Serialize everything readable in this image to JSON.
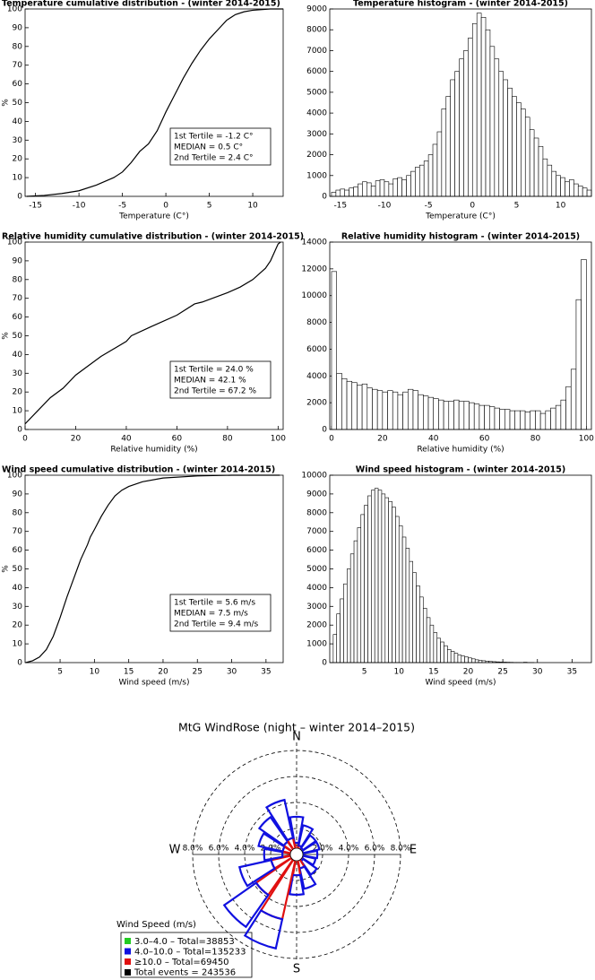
{
  "chart_data": [
    {
      "type": "line",
      "title": "Temperature cumulative distribution - (winter 2014-2015)",
      "xlabel": "Temperature (C°)",
      "ylabel": "%",
      "color": "#000000",
      "x": [
        -16,
        -14,
        -12,
        -10,
        -8,
        -6,
        -5,
        -4,
        -3,
        -2,
        -1,
        0,
        1,
        2,
        3,
        4,
        5,
        6,
        7,
        8,
        9,
        10,
        12,
        13.5
      ],
      "values": [
        0,
        0.5,
        1.5,
        3,
        6,
        10,
        13,
        18,
        24,
        28,
        35,
        45,
        54,
        63,
        71,
        78,
        84,
        89,
        94,
        97,
        98.5,
        99.3,
        100,
        100
      ],
      "xlim": [
        -16.2,
        13.5
      ],
      "ylim": [
        0,
        100
      ],
      "xticks": [
        -15,
        -10,
        -5,
        0,
        5,
        10
      ],
      "yticks": [
        0,
        10,
        20,
        30,
        40,
        50,
        60,
        70,
        80,
        90,
        100
      ],
      "annotations": [
        "1st Tertile = -1.2 C°",
        "MEDIAN = 0.5 C°",
        "2nd Tertile = 2.4 C°"
      ]
    },
    {
      "type": "histogram",
      "title": "Temperature histogram - (winter 2014-2015)",
      "xlabel": "Temperature (C°)",
      "color": "#ffffff",
      "edgecolor": "#000000",
      "bins": [
        -16,
        -15.5,
        -15,
        -14.5,
        -14,
        -13.5,
        -13,
        -12.5,
        -12,
        -11.5,
        -11,
        -10.5,
        -10,
        -9.5,
        -9,
        -8.5,
        -8,
        -7.5,
        -7,
        -6.5,
        -6,
        -5.5,
        -5,
        -4.5,
        -4,
        -3.5,
        -3,
        -2.5,
        -2,
        -1.5,
        -1,
        -0.5,
        0,
        0.5,
        1,
        1.5,
        2,
        2.5,
        3,
        3.5,
        4,
        4.5,
        5,
        5.5,
        6,
        6.5,
        7,
        7.5,
        8,
        8.5,
        9,
        9.5,
        10,
        10.5,
        11,
        11.5,
        12,
        12.5,
        13,
        13.5
      ],
      "values": [
        200,
        300,
        350,
        300,
        400,
        450,
        600,
        700,
        650,
        500,
        750,
        800,
        700,
        600,
        850,
        900,
        800,
        1000,
        1200,
        1400,
        1500,
        1700,
        2000,
        2500,
        3100,
        4200,
        4800,
        5600,
        6000,
        6600,
        7000,
        7600,
        8300,
        8800,
        8600,
        8000,
        7200,
        6600,
        6000,
        5600,
        5200,
        4800,
        4500,
        4200,
        3800,
        3200,
        2800,
        2400,
        1800,
        1500,
        1200,
        1000,
        900,
        700,
        800,
        600,
        500,
        400,
        300
      ],
      "xlim": [
        -16.2,
        13.5
      ],
      "ylim": [
        0,
        9000
      ],
      "xticks": [
        -15,
        -10,
        -5,
        0,
        5,
        10
      ],
      "yticks": [
        0,
        1000,
        2000,
        3000,
        4000,
        5000,
        6000,
        7000,
        8000,
        9000
      ]
    },
    {
      "type": "line",
      "title": "Relative humidity cumulative distribution - (winter 2014-2015)",
      "xlabel": "Relative humidity (%)",
      "ylabel": "%",
      "color": "#000000",
      "x": [
        0,
        5,
        10,
        15,
        20,
        24,
        30,
        40,
        42,
        50,
        60,
        67,
        70,
        80,
        85,
        90,
        95,
        97,
        99,
        100,
        101
      ],
      "values": [
        3,
        10,
        17,
        22,
        29,
        33,
        39,
        47,
        50,
        55,
        61,
        67,
        68,
        73,
        76,
        80,
        86,
        90,
        96,
        99,
        100
      ],
      "xlim": [
        0,
        102
      ],
      "ylim": [
        0,
        100
      ],
      "xticks": [
        0,
        20,
        40,
        60,
        80,
        100
      ],
      "yticks": [
        0,
        10,
        20,
        30,
        40,
        50,
        60,
        70,
        80,
        90,
        100
      ],
      "annotations": [
        "1st Tertile = 24.0 %",
        "MEDIAN = 42.1 %",
        "2nd Tertile = 67.2 %"
      ]
    },
    {
      "type": "histogram",
      "title": "Relative humidity histogram - (winter 2014-2015)",
      "xlabel": "Relative humidity (%)",
      "color": "#ffffff",
      "edgecolor": "#000000",
      "bins": [
        0,
        2,
        4,
        6,
        8,
        10,
        12,
        14,
        16,
        18,
        20,
        22,
        24,
        26,
        28,
        30,
        32,
        34,
        36,
        38,
        40,
        42,
        44,
        46,
        48,
        50,
        52,
        54,
        56,
        58,
        60,
        62,
        64,
        66,
        68,
        70,
        72,
        74,
        76,
        78,
        80,
        82,
        84,
        86,
        88,
        90,
        92,
        94,
        96,
        98,
        100
      ],
      "values": [
        11800,
        4200,
        3800,
        3600,
        3500,
        3300,
        3400,
        3100,
        3000,
        2900,
        2800,
        2900,
        2800,
        2600,
        2800,
        3000,
        2900,
        2600,
        2500,
        2400,
        2300,
        2200,
        2100,
        2100,
        2200,
        2100,
        2100,
        2000,
        1900,
        1800,
        1800,
        1700,
        1600,
        1500,
        1500,
        1400,
        1400,
        1400,
        1300,
        1400,
        1400,
        1200,
        1400,
        1600,
        1800,
        2200,
        3200,
        4500,
        9700,
        12700
      ],
      "xlim": [
        -0.7,
        102
      ],
      "ylim": [
        0,
        14000
      ],
      "xticks": [
        0,
        20,
        40,
        60,
        80,
        100
      ],
      "yticks": [
        0,
        2000,
        4000,
        6000,
        8000,
        10000,
        12000,
        14000
      ]
    },
    {
      "type": "line",
      "title": "Wind speed cumulative distribution - (winter 2014-2015)",
      "xlabel": "Wind speed (m/s)",
      "ylabel": "%",
      "color": "#000000",
      "x": [
        0,
        1,
        2,
        3,
        4,
        5,
        6,
        7,
        7.5,
        8,
        9,
        9.4,
        10,
        11,
        12,
        13,
        14,
        15,
        17,
        20,
        25,
        30,
        37
      ],
      "values": [
        0,
        1,
        3,
        7,
        14,
        24,
        35,
        45,
        50,
        55,
        63,
        67,
        71,
        78,
        84,
        89,
        92,
        94,
        96.5,
        98.5,
        99.6,
        100,
        100
      ],
      "xlim": [
        -0.1,
        37.5
      ],
      "ylim": [
        0,
        100
      ],
      "xticks": [
        5,
        10,
        15,
        20,
        25,
        30,
        35
      ],
      "yticks": [
        0,
        10,
        20,
        30,
        40,
        50,
        60,
        70,
        80,
        90,
        100
      ],
      "annotations": [
        "1st Tertile = 5.6 m/s",
        "MEDIAN = 7.5 m/s",
        "2nd Tertile = 9.4 m/s"
      ]
    },
    {
      "type": "histogram",
      "title": "Wind speed histogram - (winter 2014-2015)",
      "xlabel": "Wind speed (m/s)",
      "color": "#ffffff",
      "edgecolor": "#000000",
      "bins": [
        0.5,
        1,
        1.5,
        2,
        2.5,
        3,
        3.5,
        4,
        4.5,
        5,
        5.5,
        6,
        6.5,
        7,
        7.5,
        8,
        8.5,
        9,
        9.5,
        10,
        10.5,
        11,
        11.5,
        12,
        12.5,
        13,
        13.5,
        14,
        14.5,
        15,
        15.5,
        16,
        16.5,
        17,
        17.5,
        18,
        18.5,
        19,
        19.5,
        20,
        20.5,
        21,
        21.5,
        22,
        22.5,
        23,
        23.5,
        24,
        24.5,
        25,
        25.5,
        26,
        26.5,
        27,
        27.5,
        28,
        28.5,
        29,
        29.5,
        30
      ],
      "values": [
        1500,
        2600,
        3400,
        4200,
        5000,
        5800,
        6500,
        7200,
        7900,
        8400,
        8900,
        9200,
        9300,
        9200,
        9000,
        8800,
        8600,
        8300,
        7800,
        7300,
        6700,
        6100,
        5400,
        4800,
        4100,
        3500,
        2900,
        2400,
        2000,
        1600,
        1300,
        1100,
        900,
        700,
        600,
        500,
        400,
        350,
        300,
        250,
        200,
        150,
        120,
        100,
        80,
        60,
        50,
        40,
        30,
        25,
        20,
        15,
        10,
        10,
        5,
        20,
        5,
        5,
        0
      ],
      "xlim": [
        0,
        37.8
      ],
      "ylim": [
        0,
        10000
      ],
      "xticks": [
        5,
        10,
        15,
        20,
        25,
        30,
        35
      ],
      "yticks": [
        0,
        1000,
        2000,
        3000,
        4000,
        5000,
        6000,
        7000,
        8000,
        9000,
        10000
      ]
    },
    {
      "type": "windrose",
      "title": "MtG WindRose (night – winter 2014–2015)",
      "compass": [
        "N",
        "E",
        "S",
        "W"
      ],
      "directions": [
        0,
        22.5,
        45,
        67.5,
        90,
        112.5,
        135,
        157.5,
        180,
        202.5,
        225,
        247.5,
        270,
        292.5,
        315,
        337.5
      ],
      "rlim": [
        0,
        8
      ],
      "rticks": [
        {
          "value": 2,
          "label": "2.0%"
        },
        {
          "value": 4,
          "label": "4.0%"
        },
        {
          "value": 6,
          "label": "6.0%"
        },
        {
          "value": 8,
          "label": "8.0%"
        }
      ],
      "legend_title": "Wind Speed (m/s)",
      "series": [
        {
          "name": "3.0–4.0 – Total=38853",
          "color": "#22cc22",
          "values": [
            0.2,
            0.2,
            0.2,
            0.2,
            0.2,
            0.2,
            0.2,
            0.3,
            0.4,
            0.5,
            0.5,
            0.4,
            0.3,
            0.3,
            0.3,
            0.3
          ]
        },
        {
          "name": "4.0–10.0 – Total=135233",
          "color": "#1010e0",
          "values": [
            2.0,
            1.6,
            1.2,
            1.3,
            1.1,
            1.0,
            1.3,
            1.6,
            1.5,
            2.3,
            3.0,
            2.5,
            1.4,
            1.9,
            2.3,
            3.0
          ]
        },
        {
          "name": "≥10.0 – Total=69450",
          "color": "#e01010",
          "values": [
            0.7,
            0.5,
            0.4,
            0.3,
            0.3,
            0.3,
            0.4,
            0.8,
            1.2,
            4.6,
            3.3,
            1.6,
            0.8,
            0.8,
            0.9,
            1.0
          ]
        }
      ],
      "total_label": "Total events = 243536"
    }
  ]
}
